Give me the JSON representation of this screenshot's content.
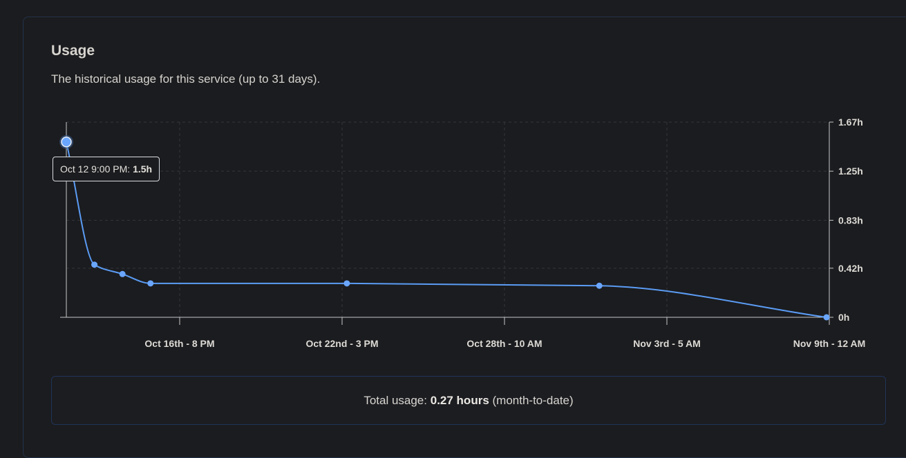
{
  "card": {
    "title": "Usage",
    "subtitle": "The historical usage for this service (up to 31 days)."
  },
  "tooltip": {
    "label": "Oct 12 9:00 PM:",
    "value": "1.5h"
  },
  "total": {
    "prefix": "Total usage:",
    "value": "0.27 hours",
    "suffix": "(month-to-date)"
  },
  "colors": {
    "line": "#5b9cf5",
    "point": "#6aa6ff",
    "axis": "#c8c8c8",
    "grid": "#33363d",
    "panel_border": "#23324a",
    "total_border": "#1f3457"
  },
  "chart_data": {
    "type": "line",
    "title": "",
    "xlabel": "",
    "ylabel": "",
    "y_axis_side": "right",
    "grid": true,
    "ylim": [
      0,
      1.67
    ],
    "y_ticks": [
      {
        "value": 0,
        "label": "0h"
      },
      {
        "value": 0.42,
        "label": "0.42h"
      },
      {
        "value": 0.83,
        "label": "0.83h"
      },
      {
        "value": 1.25,
        "label": "1.25h"
      },
      {
        "value": 1.67,
        "label": "1.67h"
      }
    ],
    "xlim_days_label_range": [
      "Oct 12 9:00 PM",
      "Nov 9th - 12 AM"
    ],
    "x_ticks": [
      {
        "label": "Oct 16th - 8 PM"
      },
      {
        "label": "Oct 22nd - 3 PM"
      },
      {
        "label": "Oct 28th - 10 AM"
      },
      {
        "label": "Nov 3rd - 5 AM"
      },
      {
        "label": "Nov 9th - 12 AM"
      }
    ],
    "series": [
      {
        "points": [
          {
            "x": "Oct 12 9:00 PM",
            "t": 0.0,
            "y": 1.5
          },
          {
            "x": "Oct 13",
            "t": 1.0,
            "y": 0.45
          },
          {
            "x": "Oct 14",
            "t": 2.0,
            "y": 0.37
          },
          {
            "x": "Oct 15",
            "t": 3.0,
            "y": 0.29
          },
          {
            "x": "Oct 22",
            "t": 10.0,
            "y": 0.29
          },
          {
            "x": "Oct 31",
            "t": 19.0,
            "y": 0.27
          },
          {
            "x": "Nov 9",
            "t": 27.1,
            "y": 0.0
          }
        ]
      }
    ],
    "highlighted_point_index": 0
  }
}
